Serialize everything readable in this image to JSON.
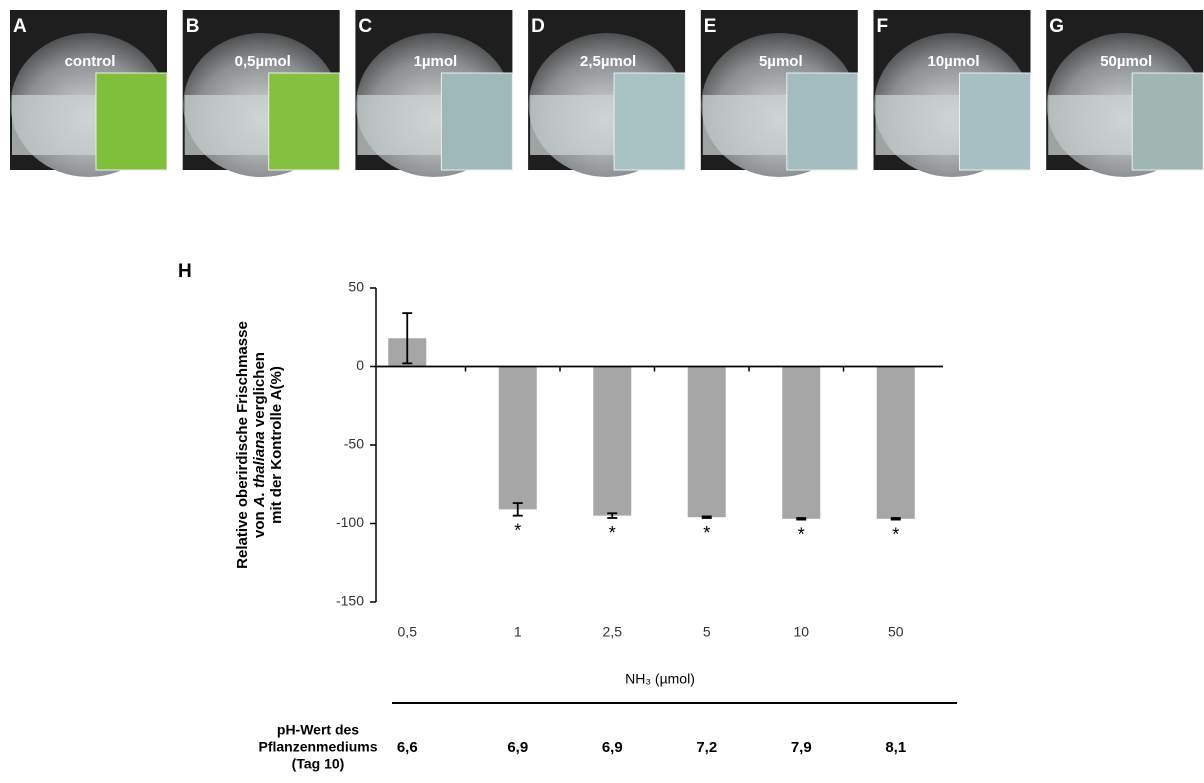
{
  "panels": [
    {
      "letter": "A",
      "label": "control",
      "inset_color": "#7fbf3a"
    },
    {
      "letter": "B",
      "label": "0,5µmol",
      "inset_color": "#86c040"
    },
    {
      "letter": "C",
      "label": "1µmol",
      "inset_color": "#9fb8b8"
    },
    {
      "letter": "D",
      "label": "2,5µmol",
      "inset_color": "#a9c2c4"
    },
    {
      "letter": "E",
      "label": "5µmol",
      "inset_color": "#a3bcc0"
    },
    {
      "letter": "F",
      "label": "10µmol",
      "inset_color": "#a8c0c3"
    },
    {
      "letter": "G",
      "label": "50µmol",
      "inset_color": "#9fb6b3"
    }
  ],
  "chart_data": {
    "type": "bar",
    "panel_letter": "H",
    "y_label_lines": [
      "Relative oberirdische Frischmasse",
      [
        "von ",
        "A. thaliana",
        " verglichen"
      ],
      "mit der Kontrolle A(%)"
    ],
    "x_label": "NH₃ (µmol)",
    "categories": [
      "0,5",
      "1",
      "2,5",
      "5",
      "10",
      "50"
    ],
    "values": [
      18,
      -91,
      -95,
      -96,
      -97,
      -97
    ],
    "errors": [
      16,
      4,
      1.5,
      0.5,
      0.5,
      0.5
    ],
    "significance": [
      null,
      "*",
      "*",
      "*",
      "*",
      "*"
    ],
    "color": "#a6a6a6",
    "ylim": [
      -150,
      50
    ],
    "yticks": [
      -150,
      -100,
      -50,
      0,
      50
    ]
  },
  "ph_row": {
    "label_lines": [
      "pH-Wert des",
      "Pflanzenmediums",
      "(Tag 10)"
    ],
    "values": [
      "6,6",
      "6,9",
      "6,9",
      "7,2",
      "7,9",
      "8,1"
    ]
  }
}
